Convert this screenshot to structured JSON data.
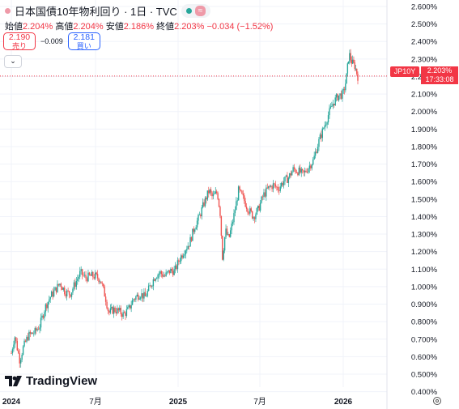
{
  "header": {
    "symbol_title": "日本国債10年物利回り · 1日 · TVC",
    "ohlc": {
      "open_label": "始値",
      "open_value": "2.204%",
      "high_label": "高値",
      "high_value": "2.204%",
      "low_label": "安値",
      "low_value": "2.186%",
      "close_label": "終値",
      "close_value": "2.203%",
      "change": "−0.034 (−1.52%)"
    },
    "sell": {
      "price": "2.190",
      "label": "売り"
    },
    "buy": {
      "price": "2.181",
      "label": "買い"
    },
    "spread": "−0.009",
    "status_dot_color": "#ef9aa8",
    "live_dot_color": "#26a69a"
  },
  "brand": {
    "name": "TradingView"
  },
  "last_price": {
    "symbol": "JP10Y",
    "value": "2.203%",
    "countdown": "17:33:08",
    "color": "#f23645"
  },
  "colors": {
    "up": "#26a69a",
    "down": "#ef5350"
  },
  "chart_data": {
    "type": "candlestick",
    "y_ticks": [
      "2.600%",
      "2.500%",
      "2.400%",
      "2.300%",
      "2.200%",
      "2.100%",
      "2.000%",
      "1.900%",
      "1.800%",
      "1.700%",
      "1.600%",
      "1.500%",
      "1.400%",
      "1.300%",
      "1.200%",
      "1.100%",
      "1.000%",
      "0.900%",
      "0.800%",
      "0.700%",
      "0.600%",
      "0.500%",
      "0.400%"
    ],
    "x_ticks": [
      {
        "label": "2024",
        "bold": true,
        "t": 0.0
      },
      {
        "label": "7月",
        "bold": false,
        "t": 0.5
      },
      {
        "label": "2025",
        "bold": true,
        "t": 1.0
      },
      {
        "label": "7月",
        "bold": false,
        "t": 1.5
      },
      {
        "label": "2026",
        "bold": true,
        "t": 2.0
      }
    ],
    "ylim": [
      0.4,
      2.6
    ],
    "xlim": [
      0.0,
      2.3
    ],
    "last_value": 2.203,
    "series": [
      {
        "t": 0.0,
        "v": 0.62
      },
      {
        "t": 0.02,
        "v": 0.72
      },
      {
        "t": 0.05,
        "v": 0.58
      },
      {
        "t": 0.07,
        "v": 0.65
      },
      {
        "t": 0.1,
        "v": 0.72
      },
      {
        "t": 0.14,
        "v": 0.74
      },
      {
        "t": 0.17,
        "v": 0.78
      },
      {
        "t": 0.2,
        "v": 0.88
      },
      {
        "t": 0.23,
        "v": 0.94
      },
      {
        "t": 0.26,
        "v": 0.98
      },
      {
        "t": 0.29,
        "v": 1.02
      },
      {
        "t": 0.32,
        "v": 0.97
      },
      {
        "t": 0.35,
        "v": 0.96
      },
      {
        "t": 0.38,
        "v": 1.02
      },
      {
        "t": 0.41,
        "v": 1.08
      },
      {
        "t": 0.44,
        "v": 1.05
      },
      {
        "t": 0.47,
        "v": 1.06
      },
      {
        "t": 0.5,
        "v": 1.06
      },
      {
        "t": 0.53,
        "v": 1.04
      },
      {
        "t": 0.56,
        "v": 0.94
      },
      {
        "t": 0.58,
        "v": 0.85
      },
      {
        "t": 0.61,
        "v": 0.87
      },
      {
        "t": 0.64,
        "v": 0.86
      },
      {
        "t": 0.67,
        "v": 0.84
      },
      {
        "t": 0.7,
        "v": 0.87
      },
      {
        "t": 0.73,
        "v": 0.93
      },
      {
        "t": 0.77,
        "v": 0.96
      },
      {
        "t": 0.8,
        "v": 0.94
      },
      {
        "t": 0.83,
        "v": 1.0
      },
      {
        "t": 0.86,
        "v": 1.06
      },
      {
        "t": 0.89,
        "v": 1.08
      },
      {
        "t": 0.92,
        "v": 1.06
      },
      {
        "t": 0.95,
        "v": 1.09
      },
      {
        "t": 0.98,
        "v": 1.09
      },
      {
        "t": 1.01,
        "v": 1.16
      },
      {
        "t": 1.04,
        "v": 1.21
      },
      {
        "t": 1.07,
        "v": 1.25
      },
      {
        "t": 1.1,
        "v": 1.34
      },
      {
        "t": 1.13,
        "v": 1.4
      },
      {
        "t": 1.16,
        "v": 1.48
      },
      {
        "t": 1.19,
        "v": 1.55
      },
      {
        "t": 1.21,
        "v": 1.51
      },
      {
        "t": 1.24,
        "v": 1.54
      },
      {
        "t": 1.26,
        "v": 1.4
      },
      {
        "t": 1.27,
        "v": 1.16
      },
      {
        "t": 1.29,
        "v": 1.32
      },
      {
        "t": 1.31,
        "v": 1.27
      },
      {
        "t": 1.34,
        "v": 1.4
      },
      {
        "t": 1.37,
        "v": 1.55
      },
      {
        "t": 1.4,
        "v": 1.5
      },
      {
        "t": 1.43,
        "v": 1.44
      },
      {
        "t": 1.46,
        "v": 1.4
      },
      {
        "t": 1.49,
        "v": 1.44
      },
      {
        "t": 1.52,
        "v": 1.52
      },
      {
        "t": 1.55,
        "v": 1.56
      },
      {
        "t": 1.58,
        "v": 1.58
      },
      {
        "t": 1.61,
        "v": 1.56
      },
      {
        "t": 1.64,
        "v": 1.6
      },
      {
        "t": 1.67,
        "v": 1.62
      },
      {
        "t": 1.7,
        "v": 1.67
      },
      {
        "t": 1.73,
        "v": 1.66
      },
      {
        "t": 1.76,
        "v": 1.64
      },
      {
        "t": 1.79,
        "v": 1.68
      },
      {
        "t": 1.82,
        "v": 1.72
      },
      {
        "t": 1.85,
        "v": 1.82
      },
      {
        "t": 1.88,
        "v": 1.9
      },
      {
        "t": 1.91,
        "v": 1.98
      },
      {
        "t": 1.94,
        "v": 2.05
      },
      {
        "t": 1.97,
        "v": 2.09
      },
      {
        "t": 2.0,
        "v": 2.1
      },
      {
        "t": 2.02,
        "v": 2.18
      },
      {
        "t": 2.04,
        "v": 2.33
      },
      {
        "t": 2.06,
        "v": 2.28
      },
      {
        "t": 2.08,
        "v": 2.26
      },
      {
        "t": 2.1,
        "v": 2.2
      }
    ]
  }
}
